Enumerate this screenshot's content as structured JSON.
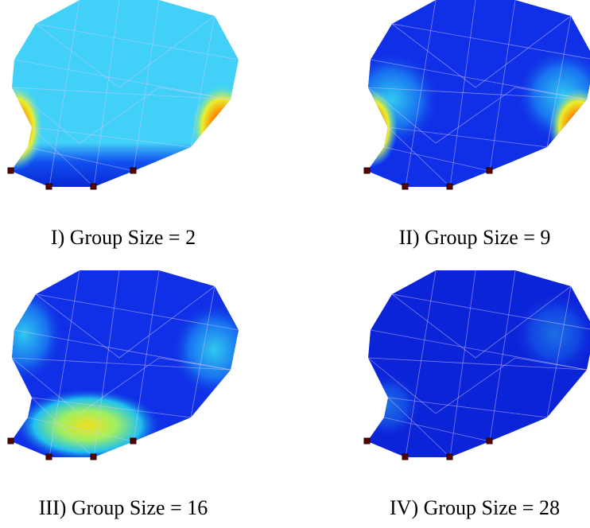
{
  "panels": [
    {
      "caption": "I) Group Size = 2"
    },
    {
      "caption": "II) Group Size = 9"
    },
    {
      "caption": "III) Group Size = 16"
    },
    {
      "caption": "IV) Group Size = 28"
    }
  ]
}
